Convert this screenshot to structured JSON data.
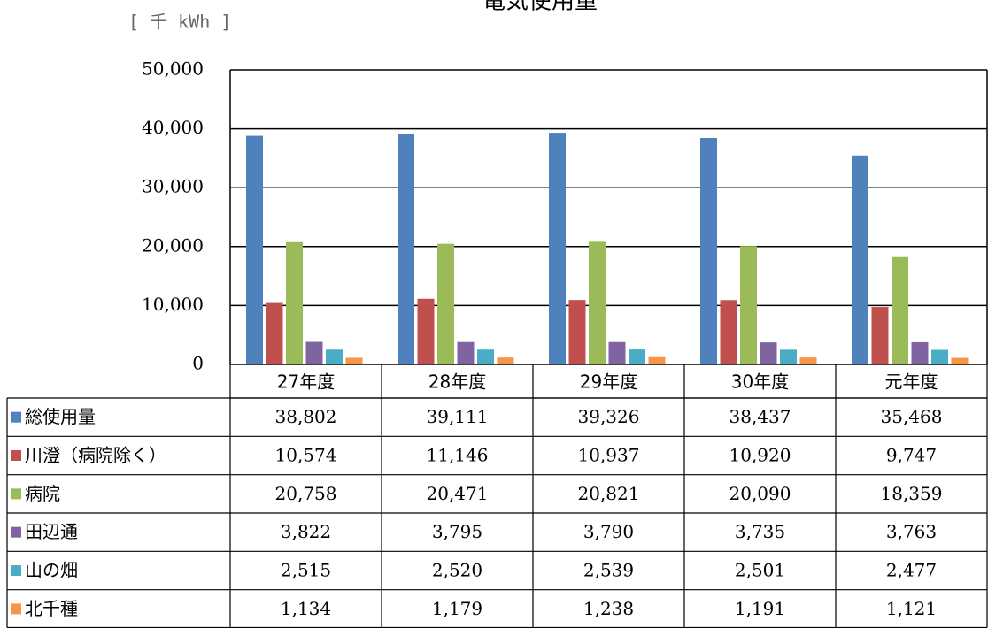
{
  "chart_data": {
    "type": "bar",
    "title": "電気使用量",
    "unit_label": "[ 千 kWh ]",
    "categories": [
      "27年度",
      "28年度",
      "29年度",
      "30年度",
      "元年度"
    ],
    "ylim": [
      0,
      50000
    ],
    "yticks": [
      {
        "value": 0,
        "label": "0"
      },
      {
        "value": 10000,
        "label": "10,000"
      },
      {
        "value": 20000,
        "label": "20,000"
      },
      {
        "value": 30000,
        "label": "30,000"
      },
      {
        "value": 40000,
        "label": "40,000"
      },
      {
        "value": 50000,
        "label": "50,000"
      }
    ],
    "grid": true,
    "series": [
      {
        "name": "総使用量",
        "color": "#4f81bd",
        "values": [
          38802,
          39111,
          39326,
          38437,
          35468
        ],
        "value_labels": [
          "38,802",
          "39,111",
          "39,326",
          "38,437",
          "35,468"
        ]
      },
      {
        "name": "川澄（病院除く）",
        "color": "#c0504d",
        "values": [
          10574,
          11146,
          10937,
          10920,
          9747
        ],
        "value_labels": [
          "10,574",
          "11,146",
          "10,937",
          "10,920",
          "9,747"
        ]
      },
      {
        "name": "病院",
        "color": "#9bbb59",
        "values": [
          20758,
          20471,
          20821,
          20090,
          18359
        ],
        "value_labels": [
          "20,758",
          "20,471",
          "20,821",
          "20,090",
          "18,359"
        ]
      },
      {
        "name": "田辺通",
        "color": "#8064a2",
        "values": [
          3822,
          3795,
          3790,
          3735,
          3763
        ],
        "value_labels": [
          "3,822",
          "3,795",
          "3,790",
          "3,735",
          "3,763"
        ]
      },
      {
        "name": "山の畑",
        "color": "#4bacc6",
        "values": [
          2515,
          2520,
          2539,
          2501,
          2477
        ],
        "value_labels": [
          "2,515",
          "2,520",
          "2,539",
          "2,501",
          "2,477"
        ]
      },
      {
        "name": "北千種",
        "color": "#f79646",
        "values": [
          1134,
          1179,
          1238,
          1191,
          1121
        ],
        "value_labels": [
          "1,134",
          "1,179",
          "1,238",
          "1,191",
          "1,121"
        ]
      }
    ]
  }
}
